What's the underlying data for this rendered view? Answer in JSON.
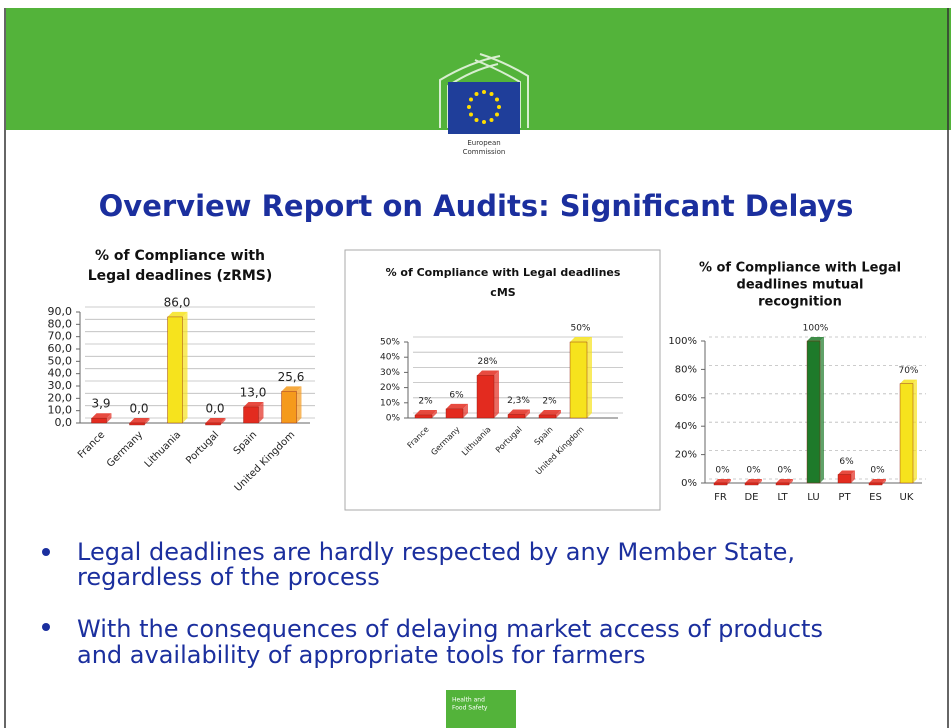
{
  "logo": {
    "top": [
      "European",
      "Commission"
    ],
    "bottom": [
      "Health and",
      "Food Safety"
    ]
  },
  "title": "Overview Report on Audits: Significant Delays",
  "bullets": [
    [
      "Legal deadlines are hardly respected by any Member State,",
      "regardless of the process"
    ],
    [
      "With the consequences of delaying market access of products",
      "and availability of appropriate tools for farmers"
    ]
  ],
  "chart_data": [
    {
      "type": "bar",
      "title": [
        "% of Compliance with",
        "Legal deadlines (zRMS)"
      ],
      "categories": [
        "France",
        "Germany",
        "Lithuania",
        "Portugal",
        "Spain",
        "United Kingdom"
      ],
      "values": [
        3.9,
        0.0,
        86.0,
        0.0,
        13.0,
        25.6
      ],
      "value_labels": [
        "3,9",
        "0,0",
        "86,0",
        "0,0",
        "13,0",
        "25,6"
      ],
      "colors": [
        "#e32b1f",
        "#e32b1f",
        "#f6e31d",
        "#e32b1f",
        "#e32b1f",
        "#f59a1c"
      ],
      "ylim": [
        0,
        90
      ],
      "yticks": [
        {
          "value": 0,
          "label": "0,0"
        },
        {
          "value": 10,
          "label": "10,0"
        },
        {
          "value": 20,
          "label": "20,0"
        },
        {
          "value": 30,
          "label": "30,0"
        },
        {
          "value": 40,
          "label": "40,0"
        },
        {
          "value": 50,
          "label": "50,0"
        },
        {
          "value": 60,
          "label": "60,0"
        },
        {
          "value": 70,
          "label": "70,0"
        },
        {
          "value": 80,
          "label": "80,0"
        },
        {
          "value": 90,
          "label": "90,0"
        }
      ],
      "grid": true
    },
    {
      "type": "bar",
      "title": [
        "% of Compliance with Legal deadlines",
        "cMS"
      ],
      "categories": [
        "France",
        "Germany",
        "Lithuania",
        "Portugal",
        "Spain",
        "United Kingdom"
      ],
      "values": [
        2,
        6,
        28,
        2.3,
        2,
        50
      ],
      "value_labels": [
        "2%",
        "6%",
        "28%",
        "2,3%",
        "2%",
        "50%"
      ],
      "colors": [
        "#e32b1f",
        "#e32b1f",
        "#e32b1f",
        "#e32b1f",
        "#e32b1f",
        "#f6e31d"
      ],
      "ylim": [
        0,
        50
      ],
      "yticks": [
        {
          "value": 0,
          "label": "0%"
        },
        {
          "value": 10,
          "label": "10%"
        },
        {
          "value": 20,
          "label": "20%"
        },
        {
          "value": 30,
          "label": "30%"
        },
        {
          "value": 40,
          "label": "40%"
        },
        {
          "value": 50,
          "label": "50%"
        }
      ],
      "grid": true
    },
    {
      "type": "bar",
      "title": [
        "% of Compliance with Legal",
        "deadlines mutual",
        "recognition"
      ],
      "categories": [
        "FR",
        "DE",
        "LT",
        "LU",
        "PT",
        "ES",
        "UK"
      ],
      "values": [
        0,
        0,
        0,
        100,
        6,
        0,
        70
      ],
      "value_labels": [
        "0%",
        "0%",
        "0%",
        "100%",
        "6%",
        "0%",
        "70%"
      ],
      "colors": [
        "#e32b1f",
        "#e32b1f",
        "#e32b1f",
        "#1e7a2a",
        "#e32b1f",
        "#e32b1f",
        "#f6e31d"
      ],
      "ylim": [
        0,
        100
      ],
      "yticks": [
        {
          "value": 0,
          "label": "0%"
        },
        {
          "value": 20,
          "label": "20%"
        },
        {
          "value": 40,
          "label": "40%"
        },
        {
          "value": 60,
          "label": "60%"
        },
        {
          "value": 80,
          "label": "80%"
        },
        {
          "value": 100,
          "label": "100%"
        }
      ],
      "grid": true
    }
  ]
}
